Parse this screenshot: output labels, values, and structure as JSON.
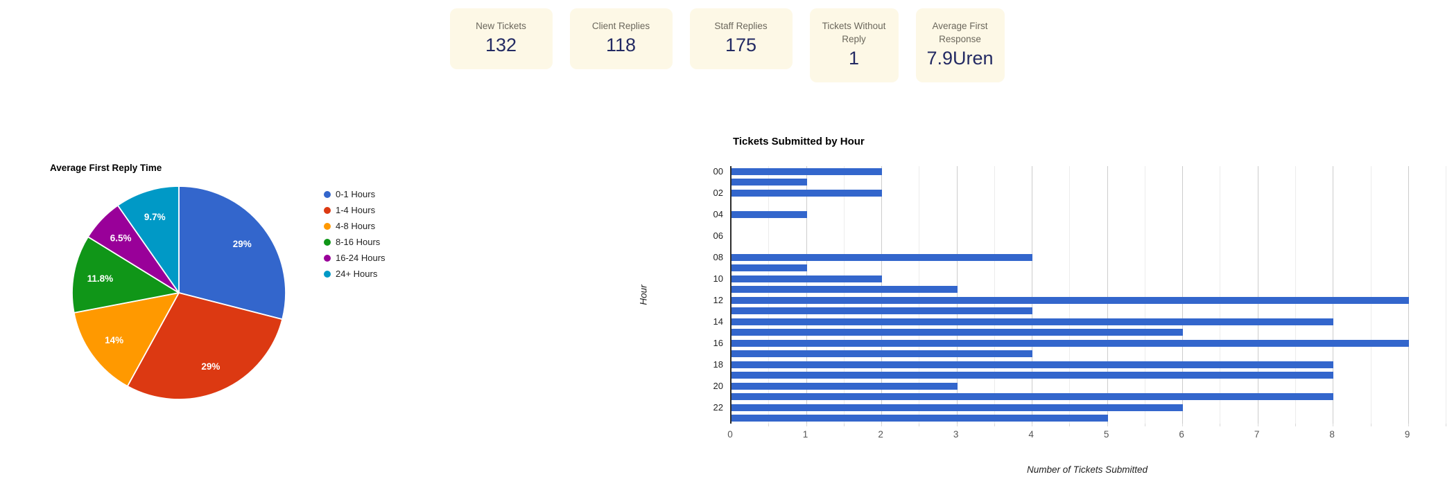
{
  "cards": [
    {
      "label": "New Tickets",
      "value": "132"
    },
    {
      "label": "Client Replies",
      "value": "118"
    },
    {
      "label": "Staff Replies",
      "value": "175"
    },
    {
      "label": "Tickets Without Reply",
      "value": "1"
    },
    {
      "label": "Average First Response",
      "value": "7.9Uren"
    }
  ],
  "colors": {
    "card_bg": "#fdf8e6",
    "card_label": "#6b675c",
    "card_value": "#232a63",
    "bar": "#3366cc",
    "axis_line": "#2b2b2b",
    "grid_minor": "#ececec",
    "grid_major": "#cccccc"
  },
  "chart_data": [
    {
      "type": "pie",
      "title": "Average First Reply Time",
      "labels": [
        "0-1 Hours",
        "1-4 Hours",
        "4-8 Hours",
        "8-16 Hours",
        "16-24 Hours",
        "24+ Hours"
      ],
      "values": [
        29,
        29,
        14,
        11.8,
        6.5,
        9.7
      ],
      "display_labels": [
        "29%",
        "29%",
        "14%",
        "11.8%",
        "6.5%",
        "9.7%"
      ],
      "slice_colors": [
        "#3366cc",
        "#dc3912",
        "#ff9900",
        "#109618",
        "#990099",
        "#0099c6"
      ],
      "legend_position": "right",
      "start_angle_deg": 0,
      "direction": "clockwise"
    },
    {
      "type": "bar",
      "orientation": "horizontal",
      "title": "Tickets Submitted by Hour",
      "xlabel": "Number of Tickets Submitted",
      "ylabel": "Hour",
      "categories": [
        "00",
        "01",
        "02",
        "03",
        "04",
        "05",
        "06",
        "07",
        "08",
        "09",
        "10",
        "11",
        "12",
        "13",
        "14",
        "15",
        "16",
        "17",
        "18",
        "19",
        "20",
        "21",
        "22",
        "23"
      ],
      "values": [
        2,
        1,
        2,
        0,
        1,
        0,
        0,
        0,
        4,
        1,
        2,
        3,
        9,
        4,
        8,
        6,
        9,
        4,
        8,
        8,
        3,
        8,
        6,
        5
      ],
      "shown_category_ticks": [
        "00",
        "02",
        "04",
        "06",
        "08",
        "10",
        "12",
        "14",
        "16",
        "18",
        "20",
        "22"
      ],
      "x_ticks": [
        0,
        1,
        2,
        3,
        4,
        5,
        6,
        7,
        8,
        9
      ],
      "xlim": [
        0,
        9.5
      ],
      "grid": true,
      "grid_step": 0.5,
      "bar_color": "#3366cc"
    }
  ]
}
